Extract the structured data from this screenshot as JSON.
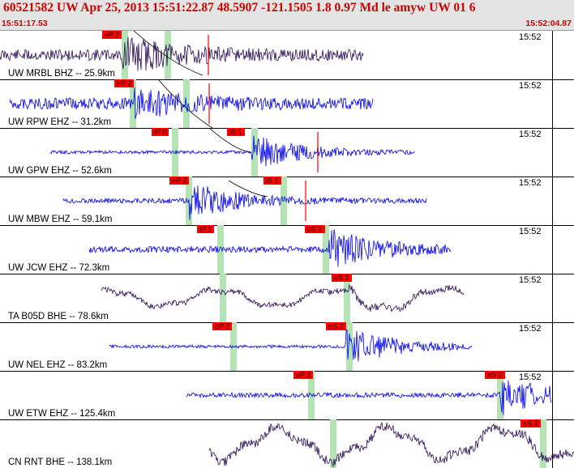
{
  "header": {
    "title": "60521582 UW Apr 25, 2013 15:51:22.87    48.5907 -121.1505  1.8 0.97 Md le amyw UW 01    6",
    "start_time": "15:51:17.53",
    "end_time": "15:52:04.87"
  },
  "colors": {
    "header_text": "#d00000",
    "pick_box": "#ff0000",
    "pick_band": "#b4e4b4",
    "trace_blue": "#0000ee",
    "trace_dark": "#2a0a55"
  },
  "traces": [
    {
      "station": "UW MRBL BHZ -- 25.9km",
      "time": "15:52",
      "color": "#2a0a55",
      "picks": [
        "eP 2"
      ]
    },
    {
      "station": "UW RPW EHZ -- 31.2km",
      "time": "15:52",
      "color": "#0000ee",
      "picks": [
        "eP 2"
      ]
    },
    {
      "station": "UW GPW EHZ -- 52.6km",
      "time": "15:52",
      "color": "#0000ee",
      "picks": [
        "iP 0",
        "iS 1"
      ]
    },
    {
      "station": "UW MBW EHZ -- 59.1km",
      "time": "15:52",
      "color": "#0000ee",
      "picks": [
        "eP 2",
        "iS 1"
      ]
    },
    {
      "station": "UW JCW EHZ -- 72.3km",
      "time": "15:52",
      "color": "#0000ee",
      "picks": [
        "iP 1",
        "eS 2"
      ]
    },
    {
      "station": "TA B05D BHE -- 78.6km",
      "time": "15:52",
      "color": "#2a0a55",
      "picks": [
        "eS 2"
      ]
    },
    {
      "station": "UW NEL EHZ -- 83.2km",
      "time": "15:52",
      "color": "#0000ee",
      "picks": [
        "eP 2",
        "eS 2"
      ]
    },
    {
      "station": "UW ETW EHZ -- 125.4km",
      "time": "15:52",
      "color": "#0000ee",
      "picks": [
        "eP 2",
        "eS 2"
      ]
    },
    {
      "station": "CN RNT BHE -- 138.1km",
      "time": "15:52",
      "color": "#2a0a55",
      "picks": [
        "eS 2"
      ]
    }
  ]
}
